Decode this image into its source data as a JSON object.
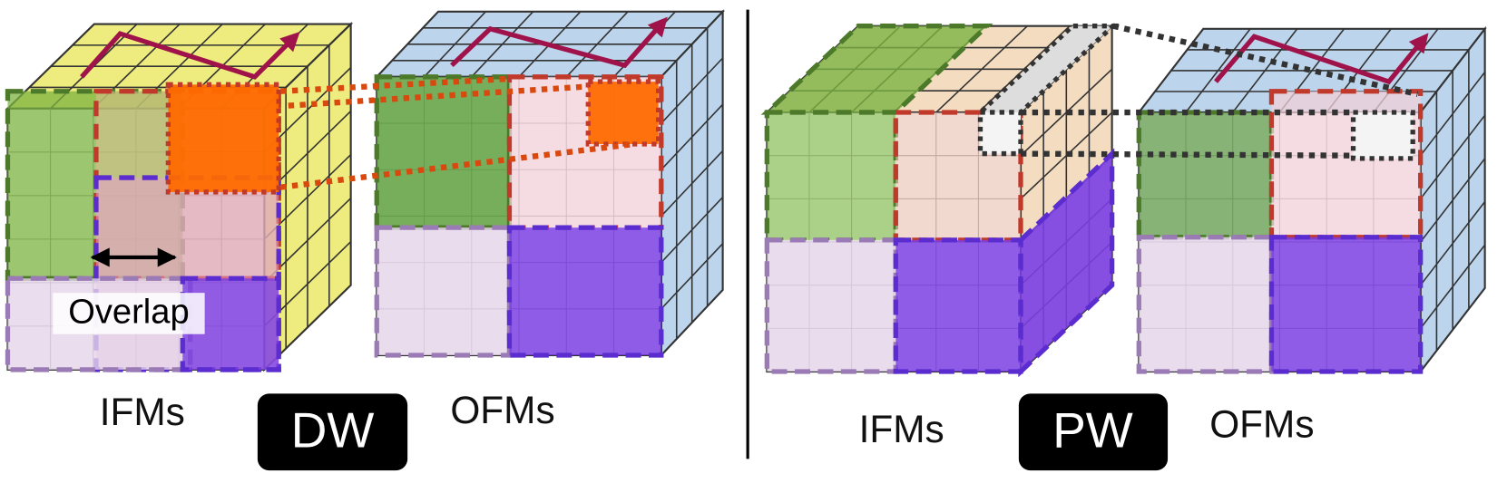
{
  "panels": [
    {
      "annotation": "Overlap",
      "ifm_label": "IFMs",
      "badge": "DW",
      "ofm_label": "OFMs"
    },
    {
      "ifm_label": "IFMs",
      "badge": "PW",
      "ofm_label": "OFMs"
    }
  ]
}
